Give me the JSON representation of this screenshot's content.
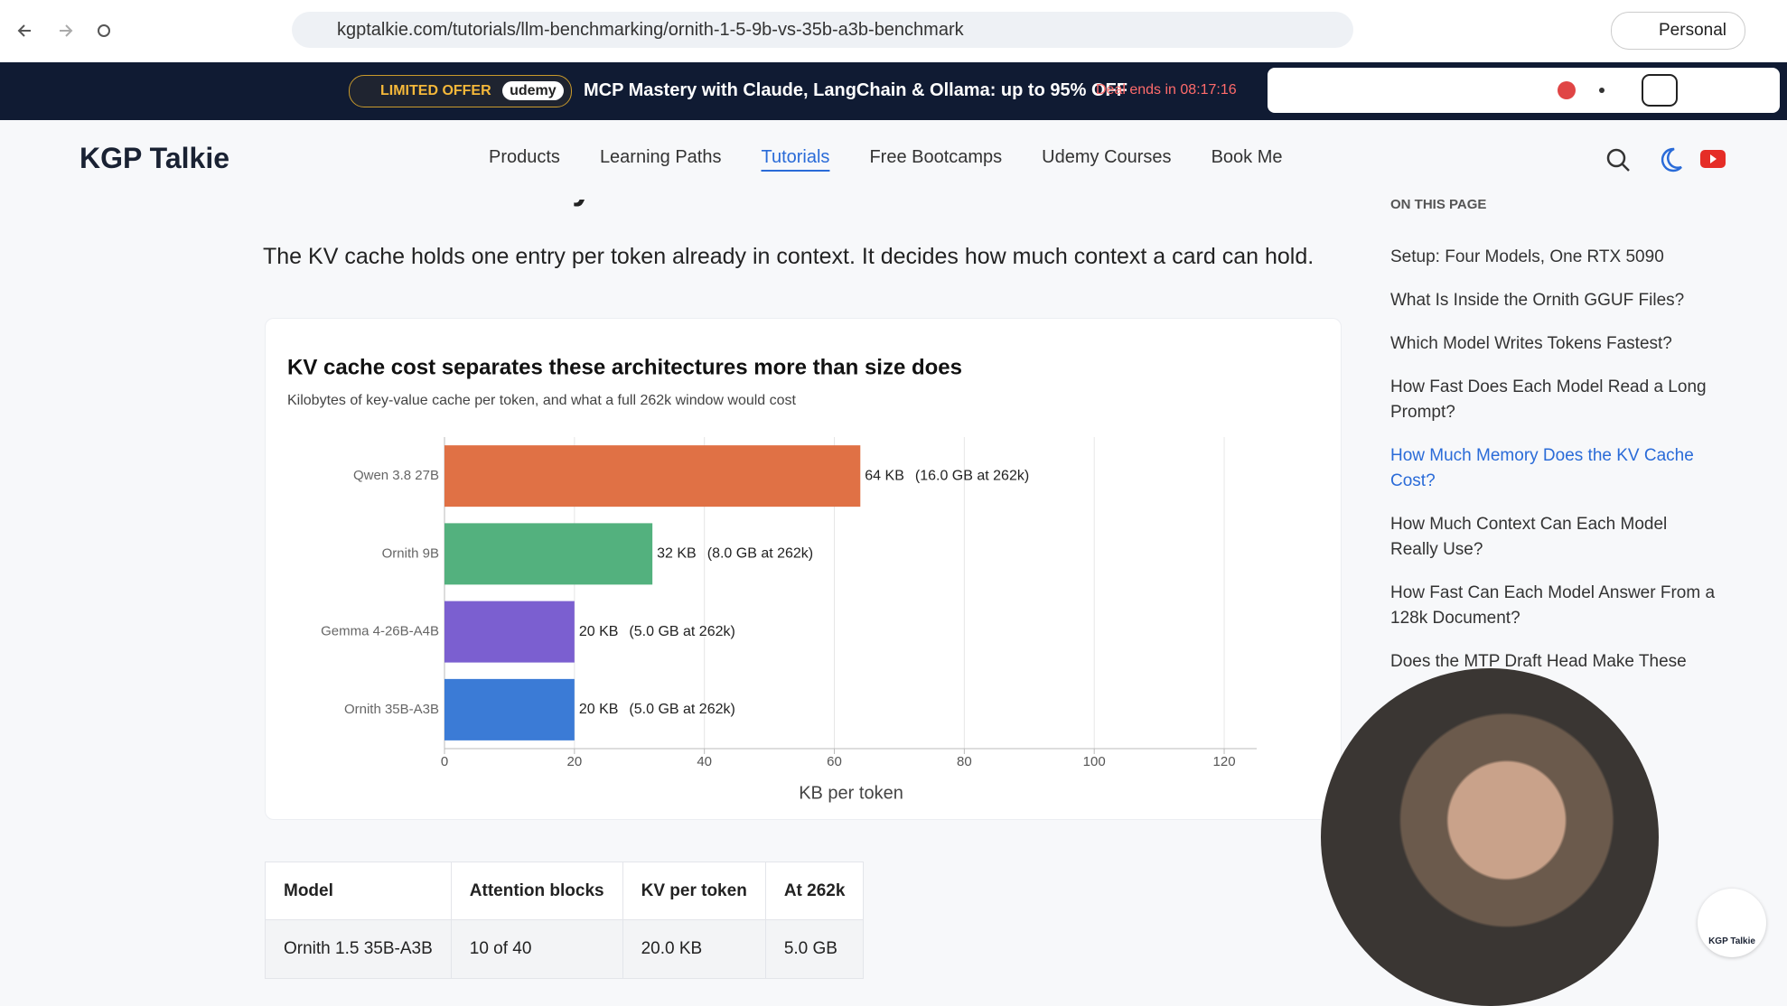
{
  "browser": {
    "url": "kgptalkie.com/tutorials/llm-benchmarking/ornith-1-5-9b-vs-35b-a3b-benchmark",
    "profile": "Personal"
  },
  "banner": {
    "badge": "LIMITED OFFER",
    "partner": "udemy",
    "message": "MCP Mastery with Claude, LangChain & Ollama: up to",
    "highlight": "95% OFF",
    "deal": "Deal ends in 08:17:16"
  },
  "nav": {
    "logo": "KGP Talkie",
    "links": [
      "Products",
      "Learning Paths",
      "Tutorials",
      "Free Bootcamps",
      "Udemy Courses",
      "Book Me"
    ],
    "active": 2
  },
  "article": {
    "heading": "How Much Memory Does the KV Cache Cost?",
    "paragraph": "The KV cache holds one entry per token already in context. It decides how much context a card can hold."
  },
  "chart_data": {
    "type": "bar",
    "orientation": "horizontal",
    "title": "KV cache cost separates these architectures more than size does",
    "subtitle": "Kilobytes of key-value cache per token, and what a full 262k window would cost",
    "xlabel": "KB per token",
    "categories": [
      "Qwen 3.8 27B",
      "Ornith 9B",
      "Gemma 4-26B-A4B",
      "Ornith 35B-A3B"
    ],
    "values": [
      64,
      32,
      20,
      20
    ],
    "value_labels": [
      "64 KB",
      "32 KB",
      "20 KB",
      "20 KB"
    ],
    "notes": [
      "(16.0 GB at 262k)",
      "(8.0 GB at 262k)",
      "(5.0 GB at 262k)",
      "(5.0 GB at 262k)"
    ],
    "colors": [
      "#e07145",
      "#53b17e",
      "#7b5fd0",
      "#3b7bd6"
    ],
    "xlim": [
      0,
      125
    ],
    "xticks": [
      0,
      20,
      40,
      60,
      80,
      100,
      120
    ],
    "grid": true
  },
  "table": {
    "columns": [
      "Model",
      "Attention blocks",
      "KV per token",
      "At 262k"
    ],
    "rows": [
      [
        "Ornith 1.5 35B-A3B",
        "10 of 40",
        "20.0 KB",
        "5.0 GB"
      ]
    ]
  },
  "toc": {
    "title": "ON THIS PAGE",
    "active": 4,
    "items": [
      "Setup: Four Models, One RTX 5090",
      "What Is Inside the Ornith GGUF Files?",
      "Which Model Writes Tokens Fastest?",
      "How Fast Does Each Model Read a Long Prompt?",
      "How Much Memory Does the KV Cache Cost?",
      "How Much Context Can Each Model Really Use?",
      "How Fast Can Each Model Answer From a 128k Document?",
      "Does the MTP Draft Head Make These"
    ]
  },
  "badge": {
    "label": "KGP Talkie"
  }
}
